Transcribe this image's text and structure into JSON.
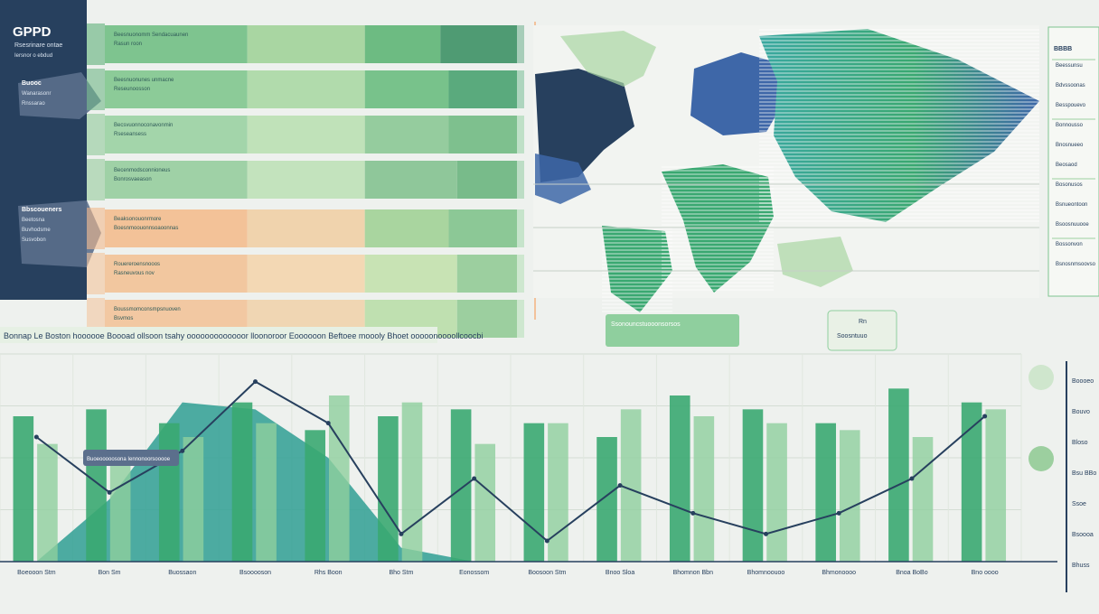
{
  "header": {
    "title": "GPPD",
    "subtitle": "Rsesrinare ontae",
    "caption": "Iersnor o ebdud"
  },
  "left_panel": {
    "blocks": [
      {
        "heading": "Buooc",
        "lines": [
          "Wanarasonr",
          "Rnssarao"
        ]
      },
      {
        "heading": "Bbscoueners",
        "lines": [
          "Beetosna",
          "Buvhodsme",
          "Susvobon"
        ]
      }
    ]
  },
  "bars_panel": {
    "rows": [
      {
        "labels": [
          "Beesnuonomm Sendacuaunen",
          "Rasun roon"
        ],
        "color": "#5fb07a",
        "segments": [
          0.34,
          0.28,
          0.18,
          0.2
        ],
        "tones": [
          "#7ec48f",
          "#a9d6a2",
          "#6dbb82",
          "#4f9b73"
        ]
      },
      {
        "labels": [
          "Beesnuonunes unmacne",
          "Reseunoosson"
        ],
        "color": "#6fb887",
        "segments": [
          0.34,
          0.28,
          0.2,
          0.18
        ],
        "tones": [
          "#8ccb98",
          "#b1dbac",
          "#78c28b",
          "#5aaa7d"
        ]
      },
      {
        "labels": [
          "Becsvuonnoconavonmin",
          "Rseseansess"
        ],
        "color": "#8fc99a",
        "segments": [
          0.34,
          0.28,
          0.2,
          0.18
        ],
        "tones": [
          "#a3d5aa",
          "#c0e2b9",
          "#95cc9e",
          "#7ec08e"
        ]
      },
      {
        "labels": [
          "Becenmodsconnioneus",
          "Bonrosvaeason"
        ],
        "color": "#96cc9d",
        "segments": [
          0.34,
          0.28,
          0.22,
          0.16
        ],
        "tones": [
          "#9fd1a6",
          "#c3e3bd",
          "#8fc79a",
          "#78bb8a"
        ]
      },
      {
        "labels": [
          "Beaksonouonrmore",
          "Boesnmoouonnsoaoonnas"
        ],
        "color": "#f1b98c",
        "segments": [
          0.34,
          0.28,
          0.2,
          0.18
        ],
        "tones": [
          "#f3c298",
          "#f0d3ad",
          "#a9d59f",
          "#8cc896"
        ]
      },
      {
        "labels": [
          "Rouereroensnooos",
          "Rasneuvous nov"
        ],
        "color": "#f4c49b",
        "segments": [
          0.34,
          0.28,
          0.22,
          0.16
        ],
        "tones": [
          "#f2c79f",
          "#f3d8b4",
          "#c8e3b4",
          "#9ccf9f"
        ]
      },
      {
        "labels": [
          "Boussmomconsmpsnuoven",
          "Bsvmos"
        ],
        "color": "#f3c6a0",
        "segments": [
          0.34,
          0.28,
          0.22,
          0.16
        ],
        "tones": [
          "#f2c8a2",
          "#f0d6b3",
          "#bfe0b0",
          "#9ccf9f"
        ]
      }
    ]
  },
  "map_panel": {
    "badge": "Ssonouncstuooonsorsos",
    "callout": [
      "Rn",
      "Soosntuuo"
    ]
  },
  "legend_right": {
    "title": "BBBB",
    "items": [
      "Beessunsu",
      "Bdvssoonas",
      "Besspouevo",
      "Bonnousso",
      "Bnosnueeo",
      "Beosaod",
      "Bosonusos",
      "Bsnueontoon",
      "Bsoosnuuooe",
      "Bossonvon",
      "Bsnosnmsoovso"
    ]
  },
  "main_chart_header": "Bonnap Le Boston hoooooe Boooad ollsoon tsahy ooooooooooooor lloonoroor Eoooooon Beftoee moooly Bhoet ooooonoooollcoocbi",
  "chart_data": {
    "type": "bar",
    "categories": [
      "Boeooon Stm",
      "Bon Sm",
      "Buossaon",
      "Bsooooson",
      "Rhs Boon",
      "Bho Stm",
      "Eonossom",
      "Boosoon Stm",
      "Bnoo Sloa",
      "Bhomnon Bbn",
      "Bhomnoouoo",
      "Bhmonoooo",
      "Bnoa BoBo",
      "Bno oooo"
    ],
    "series": [
      {
        "values": [
          42,
          44,
          40,
          46,
          38,
          42,
          44,
          40,
          36,
          48,
          44,
          40,
          50,
          46
        ]
      },
      {
        "values": [
          34,
          28,
          36,
          40,
          48,
          46,
          34,
          40,
          44,
          42,
          40,
          38,
          36,
          44
        ]
      }
    ],
    "area_values": [
      0,
      18,
      46,
      44,
      30,
      4,
      0,
      0,
      0,
      0,
      0,
      0,
      0,
      0
    ],
    "line_values": [
      36,
      20,
      32,
      52,
      40,
      8,
      24,
      6,
      22,
      14,
      8,
      14,
      24,
      42
    ],
    "ylim": [
      0,
      60
    ],
    "tooltip": "Buoeooooosona Iennonoorsooooe",
    "colors": [
      "#3aa871",
      "#8fcf9e",
      "#2f9f93",
      "#27405e"
    ]
  },
  "right_chart_panel": {
    "labels": [
      "Boooeo",
      "Bouvo",
      "Bloso",
      "Bsu BBo",
      "Ssoe",
      "Bsoooa",
      "Bhuss"
    ]
  },
  "colors": {
    "navy": "#27405e",
    "green": "#3aa871",
    "teal": "#2f9f93",
    "light_green": "#a9d6a2",
    "peach": "#f2c29b",
    "background": "#eef1ee"
  }
}
